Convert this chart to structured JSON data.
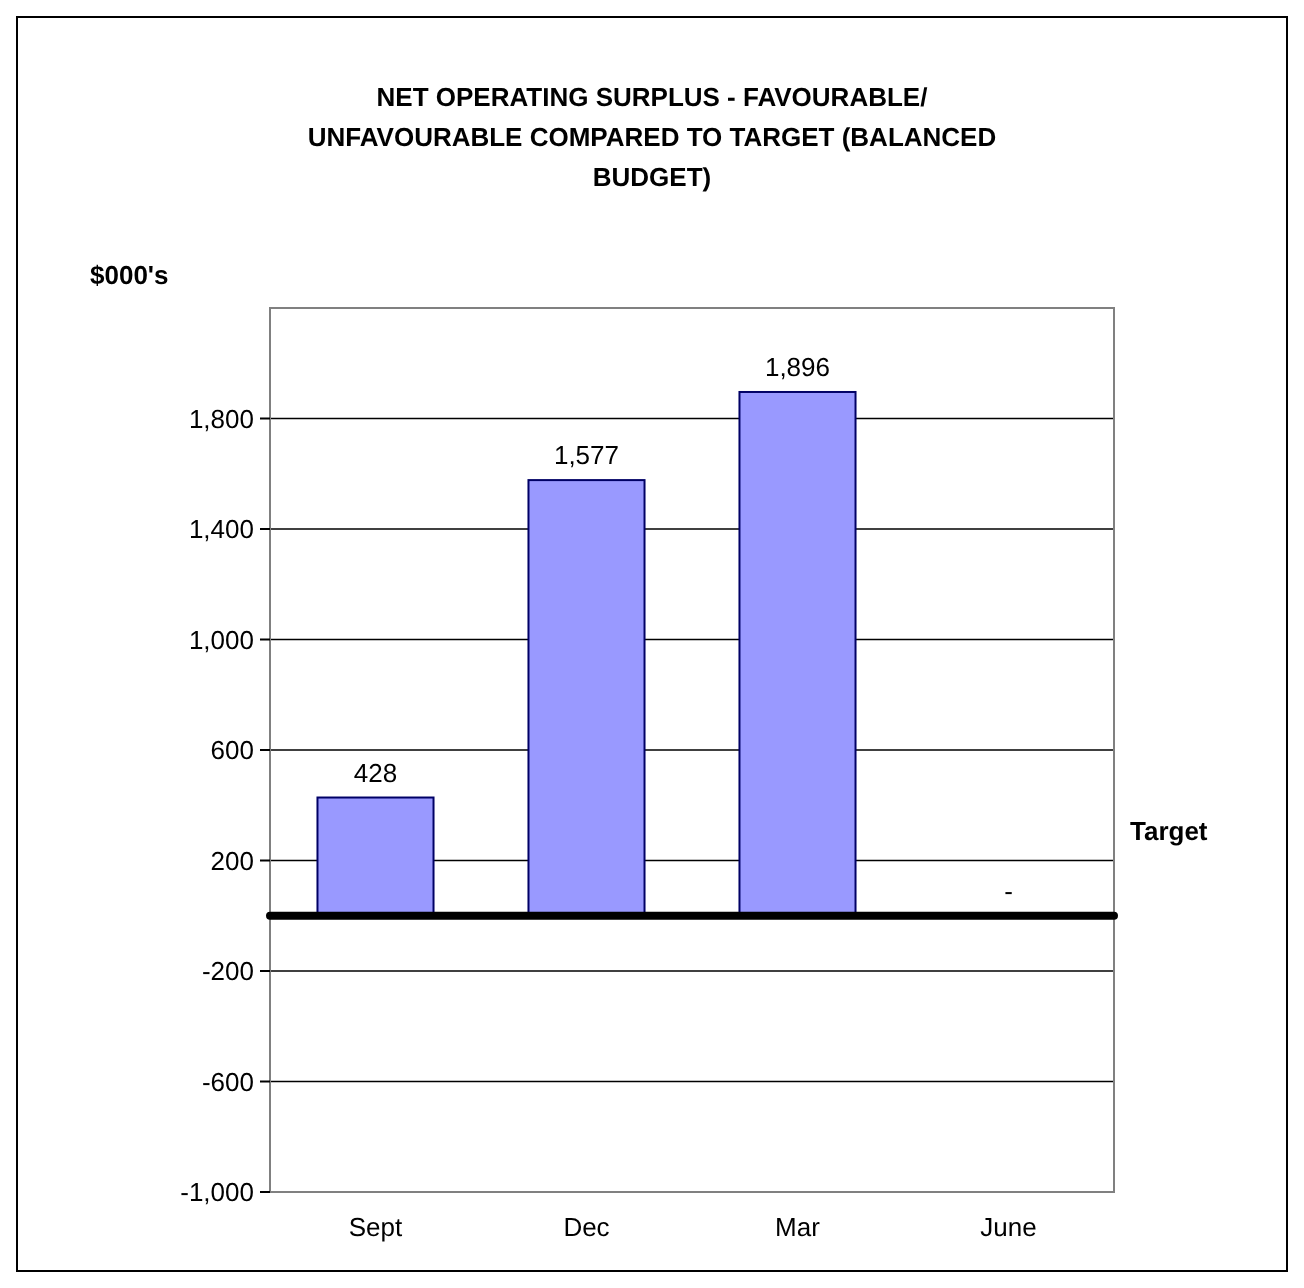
{
  "chart_data": {
    "type": "bar",
    "title": "NET OPERATING SURPLUS - FAVOURABLE/ UNFAVOURABLE COMPARED TO TARGET (BALANCED BUDGET)",
    "ylabel": "$000's",
    "categories": [
      "Sept",
      "Dec",
      "Mar",
      "June"
    ],
    "values": [
      428,
      1577,
      1896,
      0
    ],
    "value_labels": [
      "428",
      "1,577",
      "1,896",
      "-"
    ],
    "color": "#9999ff",
    "ylim": [
      -1000,
      2200
    ],
    "yticks": [
      {
        "value": -1000,
        "label": "-1,000"
      },
      {
        "value": -600,
        "label": "-600"
      },
      {
        "value": -200,
        "label": "-200"
      },
      {
        "value": 200,
        "label": "200"
      },
      {
        "value": 600,
        "label": "600"
      },
      {
        "value": 1000,
        "label": "1,000"
      },
      {
        "value": 1400,
        "label": "1,400"
      },
      {
        "value": 1800,
        "label": "1,800"
      }
    ],
    "grid": "y",
    "ref_lines": [
      {
        "axis": "y",
        "value": 0,
        "label": "Target",
        "color": "#000000"
      }
    ]
  }
}
